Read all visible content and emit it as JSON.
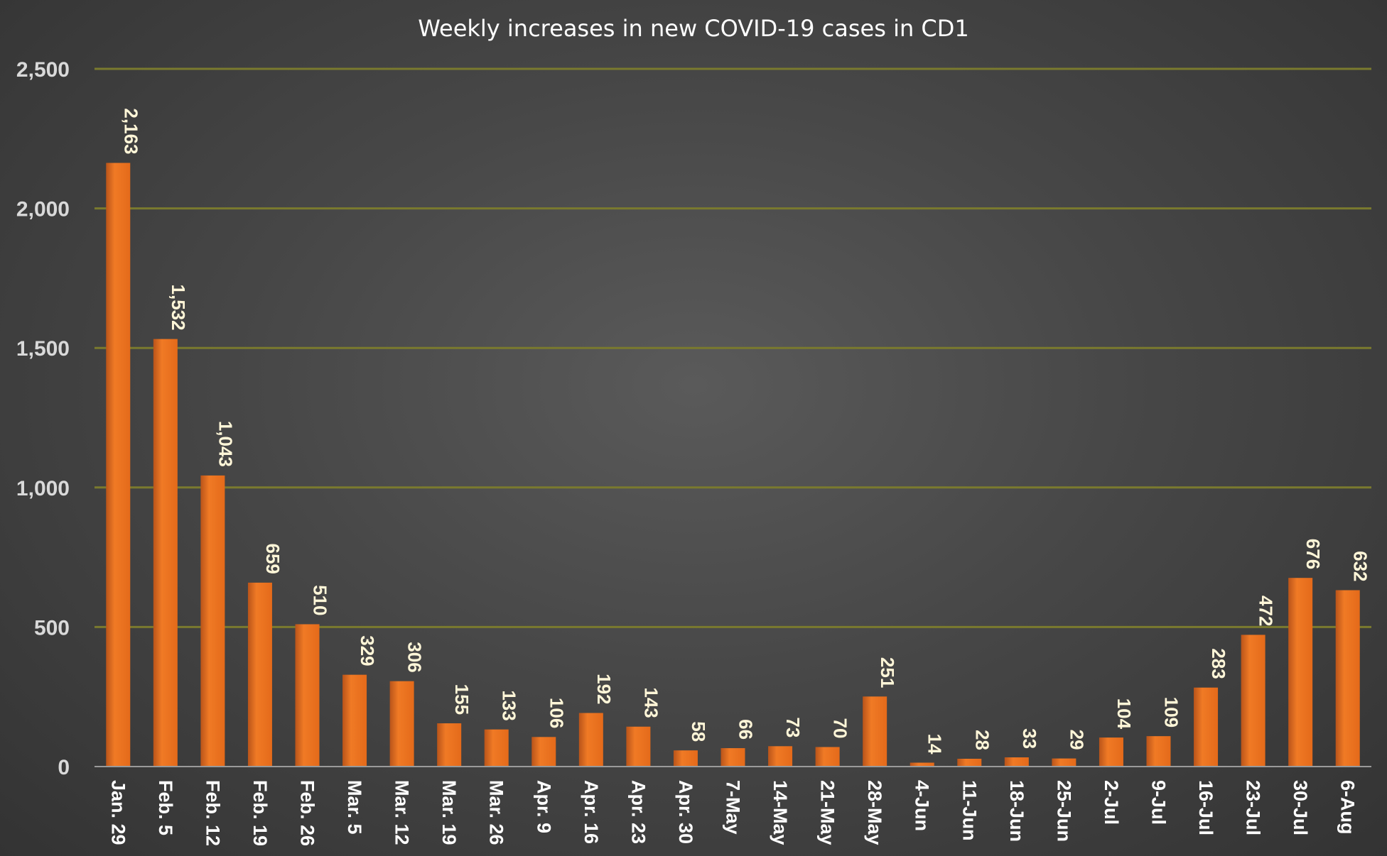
{
  "chart_data": {
    "type": "bar",
    "title": "Weekly increases in new COVID-19 cases in CD1",
    "xlabel": "",
    "ylabel": "",
    "ylim": [
      0,
      2500
    ],
    "yticks": [
      0,
      500,
      1000,
      1500,
      2000,
      2500
    ],
    "ytick_labels": [
      "0",
      "500",
      "1,000",
      "1,500",
      "2,000",
      "2,500"
    ],
    "grid": true,
    "legend": "none",
    "bar_color": "#e8731f",
    "categories": [
      "Jan. 29",
      "Feb. 5",
      "Feb. 12",
      "Feb. 19",
      "Feb. 26",
      "Mar. 5",
      "Mar. 12",
      "Mar. 19",
      "Mar. 26",
      "Apr. 9",
      "Apr. 16",
      "Apr. 23",
      "Apr. 30",
      "7-May",
      "14-May",
      "21-May",
      "28-May",
      "4-Jun",
      "11-Jun",
      "18-Jun",
      "25-Jun",
      "2-Jul",
      "9-Jul",
      "16-Jul",
      "23-Jul",
      "30-Jul",
      "6-Aug"
    ],
    "values": [
      2163,
      1532,
      1043,
      659,
      510,
      329,
      306,
      155,
      133,
      106,
      192,
      143,
      58,
      66,
      73,
      70,
      251,
      14,
      28,
      33,
      29,
      104,
      109,
      283,
      472,
      676,
      632
    ],
    "data_labels": [
      "2,163",
      "1,532",
      "1,043",
      "659",
      "510",
      "329",
      "306",
      "155",
      "133",
      "106",
      "192",
      "143",
      "58",
      "66",
      "73",
      "70",
      "251",
      "14",
      "28",
      "33",
      "29",
      "104",
      "109",
      "283",
      "472",
      "676",
      "632"
    ]
  }
}
